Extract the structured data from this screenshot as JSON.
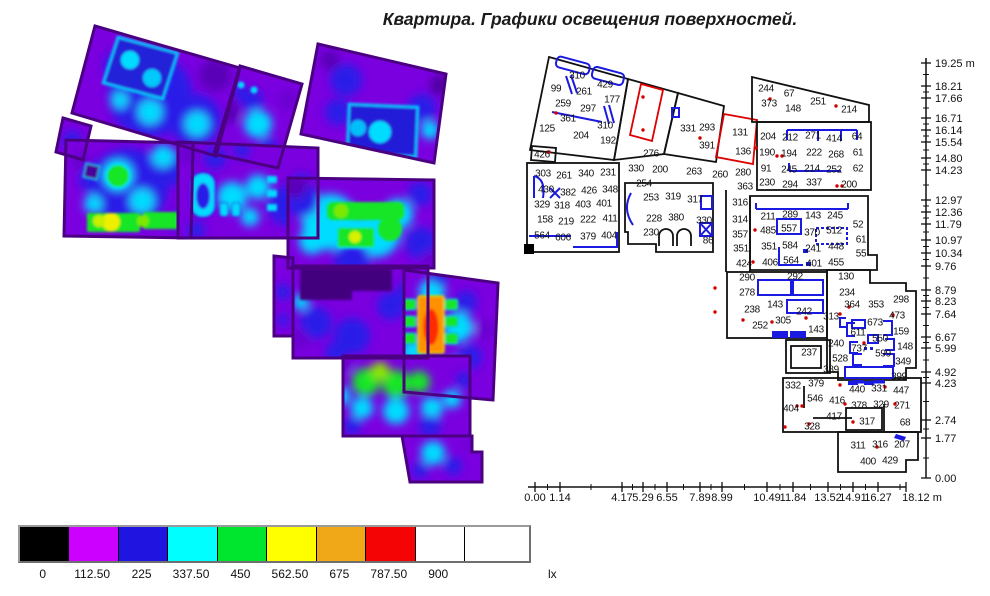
{
  "title": "Квартира. Графики освещения поверхностей.",
  "legend": {
    "unit": "lx",
    "entries": [
      {
        "label": "0",
        "color": "#000000"
      },
      {
        "label": "112.50",
        "color": "#cc00ff"
      },
      {
        "label": "225",
        "color": "#1f14e0"
      },
      {
        "label": "337.50",
        "color": "#00ffff"
      },
      {
        "label": "450",
        "color": "#00e62e"
      },
      {
        "label": "562.50",
        "color": "#ffff00"
      },
      {
        "label": "675",
        "color": "#f0a818"
      },
      {
        "label": "787.50",
        "color": "#f40404"
      },
      {
        "label": "900",
        "color": "#ffffff"
      }
    ]
  },
  "v_axis": {
    "labels": [
      [
        "19.25 m",
        63
      ],
      [
        "18.21",
        86
      ],
      [
        "17.66",
        98
      ],
      [
        "16.71",
        118
      ],
      [
        "16.14",
        130
      ],
      [
        "15.54",
        142
      ],
      [
        "14.80",
        158
      ],
      [
        "14.23",
        170
      ],
      [
        "12.97",
        200
      ],
      [
        "12.36",
        212
      ],
      [
        "11.79",
        224
      ],
      [
        "10.97",
        240
      ],
      [
        "10.34",
        253
      ],
      [
        "9.76",
        266
      ],
      [
        "8.79",
        290
      ],
      [
        "8.23",
        301
      ],
      [
        "7.64",
        314
      ],
      [
        "6.67",
        337
      ],
      [
        "5.99",
        348
      ],
      [
        "4.92",
        372
      ],
      [
        "4.23",
        383
      ],
      [
        "2.74",
        420
      ],
      [
        "1.77",
        438
      ],
      [
        "0.00",
        478
      ]
    ]
  },
  "h_axis": {
    "labels": [
      [
        "0.00",
        535
      ],
      [
        "1.14",
        560
      ],
      [
        "4.17",
        622
      ],
      [
        "5.29",
        643
      ],
      [
        "6.55",
        667
      ],
      [
        "7.89",
        700
      ],
      [
        "8.99",
        722
      ],
      [
        "10.49",
        767
      ],
      [
        "11.84",
        793
      ],
      [
        "13.52",
        828
      ],
      [
        "14.91",
        853
      ],
      [
        "16.27",
        878
      ],
      [
        "18.12 m",
        922
      ]
    ]
  },
  "floorplan": {
    "values": [
      [
        577,
        75,
        "310"
      ],
      [
        556,
        88,
        "99"
      ],
      [
        584,
        91,
        "261"
      ],
      [
        605,
        84,
        "429"
      ],
      [
        612,
        99,
        "177"
      ],
      [
        563,
        103,
        "259"
      ],
      [
        588,
        108,
        "297"
      ],
      [
        568,
        118,
        "361"
      ],
      [
        605,
        125,
        "310"
      ],
      [
        547,
        128,
        "125"
      ],
      [
        581,
        135,
        "204"
      ],
      [
        608,
        140,
        "192"
      ],
      [
        542,
        154,
        "426"
      ],
      [
        651,
        153,
        "276"
      ],
      [
        688,
        128,
        "331"
      ],
      [
        707,
        127,
        "293"
      ],
      [
        707,
        145,
        "391"
      ],
      [
        740,
        132,
        "131"
      ],
      [
        743,
        151,
        "136"
      ],
      [
        766,
        88,
        "244"
      ],
      [
        789,
        93,
        "67"
      ],
      [
        769,
        103,
        "373"
      ],
      [
        793,
        108,
        "148"
      ],
      [
        818,
        101,
        "251"
      ],
      [
        849,
        109,
        "214"
      ],
      [
        768,
        136,
        "204"
      ],
      [
        790,
        137,
        "212"
      ],
      [
        813,
        135,
        "271"
      ],
      [
        834,
        138,
        "414"
      ],
      [
        857,
        136,
        "64"
      ],
      [
        767,
        152,
        "190"
      ],
      [
        789,
        153,
        "194"
      ],
      [
        814,
        152,
        "222"
      ],
      [
        836,
        154,
        "268"
      ],
      [
        858,
        152,
        "61"
      ],
      [
        766,
        168,
        "91"
      ],
      [
        789,
        169,
        "245"
      ],
      [
        812,
        168,
        "214"
      ],
      [
        834,
        169,
        "252"
      ],
      [
        858,
        168,
        "62"
      ],
      [
        767,
        182,
        "230"
      ],
      [
        790,
        184,
        "294"
      ],
      [
        814,
        182,
        "337"
      ],
      [
        849,
        184,
        "200"
      ],
      [
        543,
        173,
        "303"
      ],
      [
        564,
        175,
        "261"
      ],
      [
        586,
        173,
        "340"
      ],
      [
        608,
        172,
        "231"
      ],
      [
        546,
        189,
        "430"
      ],
      [
        568,
        192,
        "382"
      ],
      [
        589,
        190,
        "426"
      ],
      [
        610,
        189,
        "348"
      ],
      [
        542,
        204,
        "329"
      ],
      [
        562,
        205,
        "318"
      ],
      [
        583,
        204,
        "403"
      ],
      [
        604,
        203,
        "401"
      ],
      [
        545,
        219,
        "158"
      ],
      [
        566,
        221,
        "219"
      ],
      [
        588,
        219,
        "222"
      ],
      [
        610,
        218,
        "411"
      ],
      [
        542,
        235,
        "564"
      ],
      [
        563,
        237,
        "606"
      ],
      [
        588,
        236,
        "379"
      ],
      [
        609,
        235,
        "404"
      ],
      [
        636,
        168,
        "330"
      ],
      [
        660,
        169,
        "200"
      ],
      [
        694,
        171,
        "263"
      ],
      [
        720,
        174,
        "260"
      ],
      [
        743,
        172,
        "280"
      ],
      [
        644,
        183,
        "254"
      ],
      [
        651,
        197,
        "253"
      ],
      [
        673,
        196,
        "319"
      ],
      [
        695,
        199,
        "317"
      ],
      [
        654,
        218,
        "228"
      ],
      [
        676,
        217,
        "380"
      ],
      [
        704,
        220,
        "330"
      ],
      [
        651,
        232,
        "230"
      ],
      [
        708,
        240,
        "86"
      ],
      [
        745,
        186,
        "363"
      ],
      [
        740,
        202,
        "316"
      ],
      [
        740,
        219,
        "314"
      ],
      [
        740,
        234,
        "357"
      ],
      [
        741,
        248,
        "351"
      ],
      [
        744,
        263,
        "424"
      ],
      [
        747,
        277,
        "290"
      ],
      [
        747,
        292,
        "278"
      ],
      [
        768,
        216,
        "211"
      ],
      [
        790,
        214,
        "289"
      ],
      [
        813,
        215,
        "143"
      ],
      [
        835,
        215,
        "245"
      ],
      [
        858,
        224,
        "52"
      ],
      [
        768,
        230,
        "485"
      ],
      [
        789,
        228,
        "557"
      ],
      [
        812,
        232,
        "370"
      ],
      [
        834,
        230,
        "512"
      ],
      [
        861,
        239,
        "61"
      ],
      [
        769,
        246,
        "351"
      ],
      [
        790,
        245,
        "584"
      ],
      [
        813,
        248,
        "241"
      ],
      [
        836,
        246,
        "448"
      ],
      [
        861,
        253,
        "55"
      ],
      [
        770,
        262,
        "406"
      ],
      [
        791,
        260,
        "564"
      ],
      [
        814,
        263,
        "401"
      ],
      [
        836,
        262,
        "455"
      ],
      [
        795,
        276,
        "292"
      ],
      [
        846,
        276,
        "130"
      ],
      [
        847,
        292,
        "234"
      ],
      [
        752,
        309,
        "238"
      ],
      [
        775,
        304,
        "143"
      ],
      [
        804,
        311,
        "242"
      ],
      [
        783,
        320,
        "305"
      ],
      [
        760,
        325,
        "252"
      ],
      [
        852,
        304,
        "364"
      ],
      [
        876,
        304,
        "353"
      ],
      [
        901,
        299,
        "298"
      ],
      [
        831,
        316,
        "313"
      ],
      [
        875,
        322,
        "673"
      ],
      [
        897,
        315,
        "473"
      ],
      [
        816,
        329,
        "143"
      ],
      [
        858,
        332,
        "611"
      ],
      [
        901,
        331,
        "159"
      ],
      [
        836,
        343,
        "240"
      ],
      [
        880,
        338,
        "550"
      ],
      [
        905,
        346,
        "148"
      ],
      [
        859,
        348,
        "737"
      ],
      [
        883,
        353,
        "599"
      ],
      [
        840,
        358,
        "528"
      ],
      [
        903,
        361,
        "349"
      ],
      [
        831,
        369,
        "389"
      ],
      [
        899,
        376,
        "399"
      ],
      [
        809,
        352,
        "237"
      ],
      [
        793,
        385,
        "332"
      ],
      [
        816,
        383,
        "379"
      ],
      [
        857,
        389,
        "440"
      ],
      [
        879,
        388,
        "331"
      ],
      [
        901,
        390,
        "447"
      ],
      [
        815,
        398,
        "546"
      ],
      [
        837,
        400,
        "416"
      ],
      [
        859,
        405,
        "378"
      ],
      [
        881,
        404,
        "329"
      ],
      [
        902,
        405,
        "271"
      ],
      [
        791,
        408,
        "404"
      ],
      [
        834,
        416,
        "417"
      ],
      [
        867,
        421,
        "317"
      ],
      [
        905,
        422,
        "68"
      ],
      [
        812,
        426,
        "328"
      ],
      [
        858,
        445,
        "311"
      ],
      [
        880,
        444,
        "316"
      ],
      [
        902,
        444,
        "207"
      ],
      [
        868,
        461,
        "400"
      ],
      [
        890,
        460,
        "429"
      ]
    ]
  }
}
